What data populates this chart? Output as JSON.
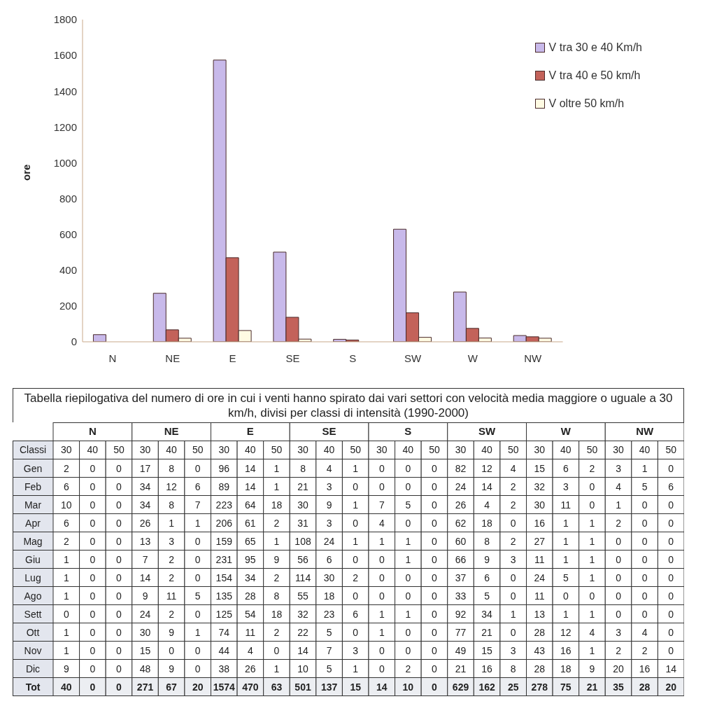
{
  "chart_data": [
    {
      "type": "bar",
      "ylabel": "ore",
      "categories": [
        "N",
        "NE",
        "E",
        "SE",
        "S",
        "SW",
        "W",
        "NW"
      ],
      "series": [
        {
          "name": "V tra 30 e 40 Km/h",
          "color": "#c8b9ea",
          "values": [
            40,
            271,
            1574,
            501,
            14,
            629,
            278,
            35
          ]
        },
        {
          "name": "V tra 40 e 50 km/h",
          "color": "#c3625a",
          "values": [
            0,
            67,
            470,
            137,
            10,
            162,
            75,
            28
          ]
        },
        {
          "name": "V oltre 50 km/h",
          "color": "#fffbe3",
          "values": [
            0,
            20,
            63,
            15,
            0,
            25,
            21,
            20
          ]
        }
      ],
      "ylim": [
        0,
        1800
      ],
      "yticks": [
        0,
        200,
        400,
        600,
        800,
        1000,
        1200,
        1400,
        1600,
        1800
      ],
      "legend": "top right"
    },
    {
      "type": "heatmap",
      "title": "Tabella riepilogativa del numero di ore in cui i venti hanno spirato dai vari settori con velocità media maggiore o uguale a 30 km/h, divisi per classi di intensità (1990-2000)",
      "xlabel": "Classi",
      "data_labels": true,
      "annotations": [
        "N",
        "NE",
        "E",
        "SE",
        "S",
        "SW",
        "W",
        "NW"
      ],
      "categories": [
        "30",
        "40",
        "50",
        "30",
        "40",
        "50",
        "30",
        "40",
        "50",
        "30",
        "40",
        "50",
        "30",
        "40",
        "50",
        "30",
        "40",
        "50",
        "30",
        "40",
        "50",
        "30",
        "40",
        "50"
      ],
      "y_categories": [
        "Gen",
        "Feb",
        "Mar",
        "Apr",
        "Mag",
        "Giu",
        "Lug",
        "Ago",
        "Sett",
        "Ott",
        "Nov",
        "Dic",
        "Tot"
      ],
      "cells": [
        [
          2,
          0,
          0,
          17,
          8,
          0,
          96,
          14,
          1,
          8,
          4,
          1,
          0,
          0,
          0,
          82,
          12,
          4,
          15,
          6,
          2,
          3,
          1,
          0
        ],
        [
          6,
          0,
          0,
          34,
          12,
          6,
          89,
          14,
          1,
          21,
          3,
          0,
          0,
          0,
          0,
          24,
          14,
          2,
          32,
          3,
          0,
          4,
          5,
          6
        ],
        [
          10,
          0,
          0,
          34,
          8,
          7,
          223,
          64,
          18,
          30,
          9,
          1,
          7,
          5,
          0,
          26,
          4,
          2,
          30,
          11,
          0,
          1,
          0,
          0
        ],
        [
          6,
          0,
          0,
          26,
          1,
          1,
          206,
          61,
          2,
          31,
          3,
          0,
          4,
          0,
          0,
          62,
          18,
          0,
          16,
          1,
          1,
          2,
          0,
          0
        ],
        [
          2,
          0,
          0,
          13,
          3,
          0,
          159,
          65,
          1,
          108,
          24,
          1,
          1,
          1,
          0,
          60,
          8,
          2,
          27,
          1,
          1,
          0,
          0,
          0
        ],
        [
          1,
          0,
          0,
          7,
          2,
          0,
          231,
          95,
          9,
          56,
          6,
          0,
          0,
          1,
          0,
          66,
          9,
          3,
          11,
          1,
          1,
          0,
          0,
          0
        ],
        [
          1,
          0,
          0,
          14,
          2,
          0,
          154,
          34,
          2,
          114,
          30,
          2,
          0,
          0,
          0,
          37,
          6,
          0,
          24,
          5,
          1,
          0,
          0,
          0
        ],
        [
          1,
          0,
          0,
          9,
          11,
          5,
          135,
          28,
          8,
          55,
          18,
          0,
          0,
          0,
          0,
          33,
          5,
          0,
          11,
          0,
          0,
          0,
          0,
          0
        ],
        [
          0,
          0,
          0,
          24,
          2,
          0,
          125,
          54,
          18,
          32,
          23,
          6,
          1,
          1,
          0,
          92,
          34,
          1,
          13,
          1,
          1,
          0,
          0,
          0
        ],
        [
          1,
          0,
          0,
          30,
          9,
          1,
          74,
          11,
          2,
          22,
          5,
          0,
          1,
          0,
          0,
          77,
          21,
          0,
          28,
          12,
          4,
          3,
          4,
          0
        ],
        [
          1,
          0,
          0,
          15,
          0,
          0,
          44,
          4,
          0,
          14,
          7,
          3,
          0,
          0,
          0,
          49,
          15,
          3,
          43,
          16,
          1,
          2,
          2,
          0
        ],
        [
          9,
          0,
          0,
          48,
          9,
          0,
          38,
          26,
          1,
          10,
          5,
          1,
          0,
          2,
          0,
          21,
          16,
          8,
          28,
          18,
          9,
          20,
          16,
          14
        ],
        [
          40,
          0,
          0,
          271,
          67,
          20,
          1574,
          470,
          63,
          501,
          137,
          15,
          14,
          10,
          0,
          629,
          162,
          25,
          278,
          75,
          21,
          35,
          28,
          20
        ]
      ]
    }
  ]
}
